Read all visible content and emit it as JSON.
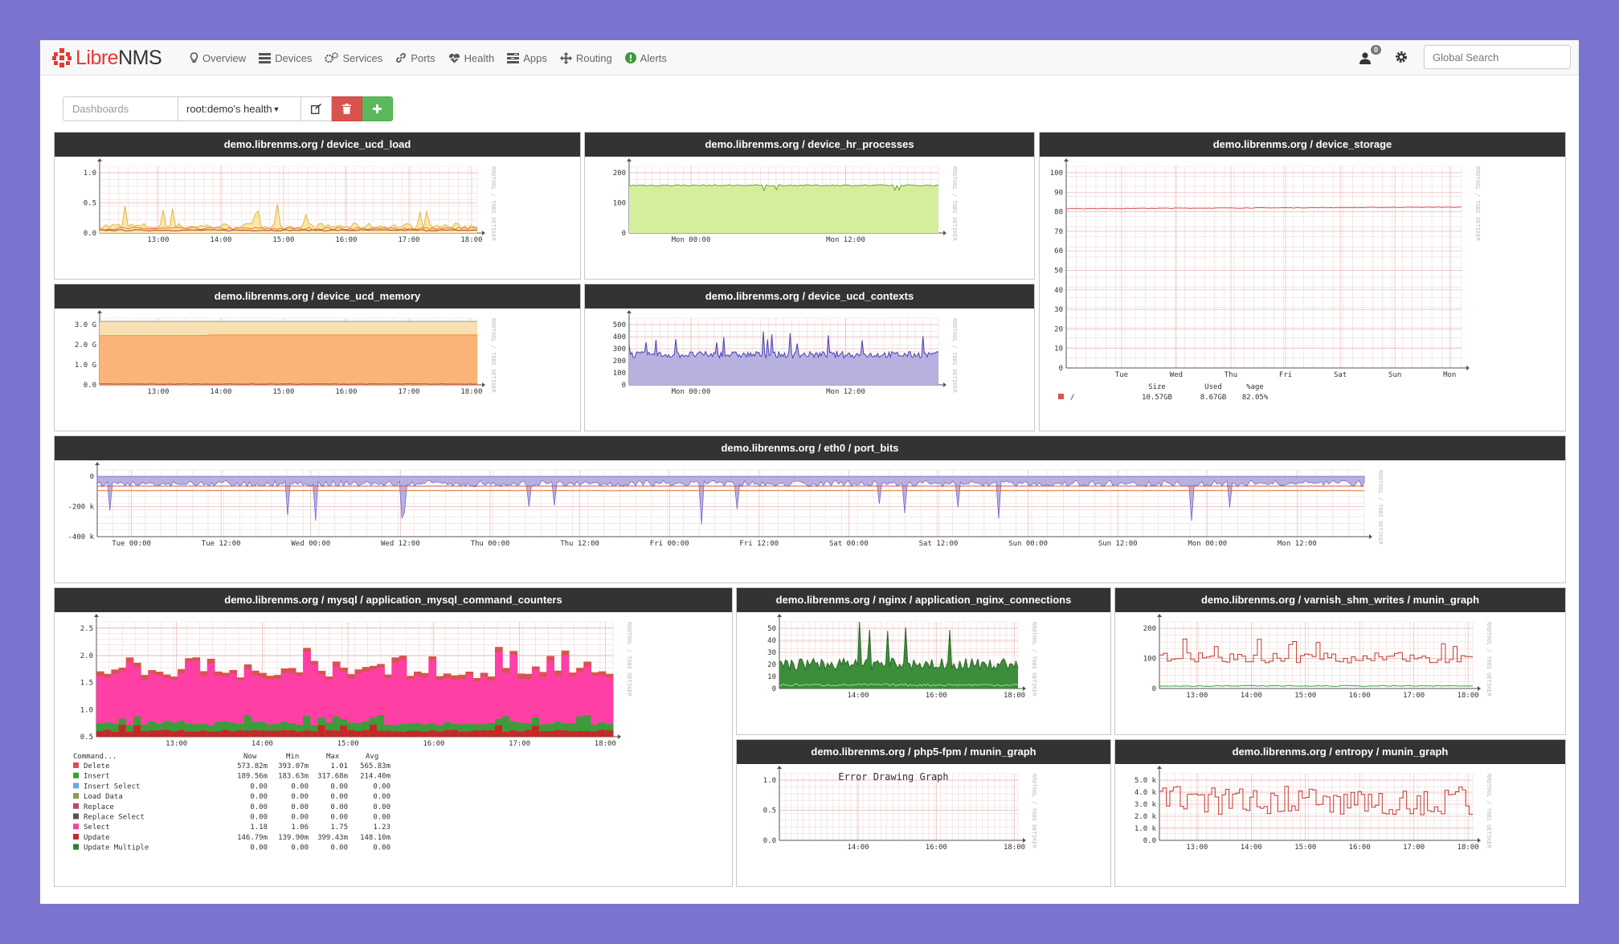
{
  "brand": {
    "prefix": "Libre",
    "suffix": "NMS"
  },
  "nav": [
    {
      "label": "Overview",
      "icon": "lightbulb-icon"
    },
    {
      "label": "Devices",
      "icon": "server-icon"
    },
    {
      "label": "Services",
      "icon": "cogs-icon"
    },
    {
      "label": "Ports",
      "icon": "link-icon"
    },
    {
      "label": "Health",
      "icon": "heartbeat-icon"
    },
    {
      "label": "Apps",
      "icon": "tasks-icon"
    },
    {
      "label": "Routing",
      "icon": "arrows-icon"
    },
    {
      "label": "Alerts",
      "icon": "exclamation-circle-icon"
    }
  ],
  "user": {
    "badge": "0"
  },
  "search": {
    "placeholder": "Global Search"
  },
  "toolbar": {
    "dashboards_placeholder": "Dashboards",
    "selected_dashboard": "root:demo's health"
  },
  "widgets": {
    "load": {
      "title": "demo.librenms.org / device_ucd_load",
      "yticks": [
        "1.0",
        "0.5",
        "0.0"
      ],
      "xticks": [
        "13:00",
        "14:00",
        "15:00",
        "16:00",
        "17:00",
        "18:00"
      ]
    },
    "processes": {
      "title": "demo.librenms.org / device_hr_processes",
      "yticks": [
        "200",
        "100",
        "0"
      ],
      "xticks": [
        "Mon 00:00",
        "Mon 12:00"
      ]
    },
    "storage": {
      "title": "demo.librenms.org / device_storage",
      "yticks": [
        "100",
        "90",
        "80",
        "70",
        "60",
        "50",
        "40",
        "30",
        "20",
        "10",
        "0"
      ],
      "xticks": [
        "Tue",
        "Wed",
        "Thu",
        "Fri",
        "Sat",
        "Sun",
        "Mon"
      ],
      "legend_head": [
        "Size",
        "Used",
        "%age"
      ],
      "legend_row": {
        "name": "/",
        "size": "10.57GB",
        "used": "8.67GB",
        "pct": "82.05%"
      },
      "line_color": "#d9534f"
    },
    "memory": {
      "title": "demo.librenms.org / device_ucd_memory",
      "yticks": [
        "3.0 G",
        "2.0 G",
        "1.0 G",
        "0.0"
      ],
      "xticks": [
        "13:00",
        "14:00",
        "15:00",
        "16:00",
        "17:00",
        "18:00"
      ]
    },
    "contexts": {
      "title": "demo.librenms.org / device_ucd_contexts",
      "yticks": [
        "500",
        "400",
        "300",
        "200",
        "100",
        "0"
      ],
      "xticks": [
        "Mon 00:00",
        "Mon 12:00"
      ]
    },
    "port_bits": {
      "title": "demo.librenms.org / eth0 / port_bits",
      "yticks": [
        "0",
        "-200 k",
        "-400 k"
      ],
      "xticks": [
        "Tue 00:00",
        "Tue 12:00",
        "Wed 00:00",
        "Wed 12:00",
        "Thu 00:00",
        "Thu 12:00",
        "Fri 00:00",
        "Fri 12:00",
        "Sat 00:00",
        "Sat 12:00",
        "Sun 00:00",
        "Sun 12:00",
        "Mon 00:00",
        "Mon 12:00"
      ]
    },
    "mysql": {
      "title": "demo.librenms.org / mysql / application_mysql_command_counters",
      "yticks": [
        "2.5",
        "2.0",
        "1.5",
        "1.0",
        "0.5"
      ],
      "xticks": [
        "13:00",
        "14:00",
        "15:00",
        "16:00",
        "17:00",
        "18:00"
      ],
      "legend_head": [
        "Command...",
        "Now",
        "Min",
        "Max",
        "Avg"
      ],
      "legend": [
        {
          "name": "Delete",
          "color": "#d9534f",
          "now": "573.82m",
          "min": "393.07m",
          "max": "1.01",
          "avg": "565.83m"
        },
        {
          "name": "Insert",
          "color": "#3a9d3a",
          "now": "189.56m",
          "min": "183.63m",
          "max": "317.68m",
          "avg": "214.40m"
        },
        {
          "name": "Insert Select",
          "color": "#6fa8dc",
          "now": "0.00",
          "min": "0.00",
          "max": "0.00",
          "avg": "0.00"
        },
        {
          "name": "Load Data",
          "color": "#8b9b4a",
          "now": "0.00",
          "min": "0.00",
          "max": "0.00",
          "avg": "0.00"
        },
        {
          "name": "Replace",
          "color": "#b84a6a",
          "now": "0.00",
          "min": "0.00",
          "max": "0.00",
          "avg": "0.00"
        },
        {
          "name": "Replace Select",
          "color": "#555555",
          "now": "0.00",
          "min": "0.00",
          "max": "0.00",
          "avg": "0.00"
        },
        {
          "name": "Select",
          "color": "#ff3fa6",
          "now": "1.18",
          "min": "1.06",
          "max": "1.75",
          "avg": "1.23"
        },
        {
          "name": "Update",
          "color": "#c62828",
          "now": "146.79m",
          "min": "139.90m",
          "max": "399.43m",
          "avg": "148.10m"
        },
        {
          "name": "Update Multiple",
          "color": "#2e7d32",
          "now": "0.00",
          "min": "0.00",
          "max": "0.00",
          "avg": "0.00"
        }
      ]
    },
    "nginx": {
      "title": "demo.librenms.org / nginx / application_nginx_connections",
      "yticks": [
        "50",
        "40",
        "30",
        "20",
        "10",
        "0"
      ],
      "xticks": [
        "14:00",
        "16:00",
        "18:00"
      ]
    },
    "varnish": {
      "title": "demo.librenms.org / varnish_shm_writes / munin_graph",
      "yticks": [
        "200",
        "100",
        "0"
      ],
      "xticks": [
        "13:00",
        "14:00",
        "15:00",
        "16:00",
        "17:00",
        "18:00"
      ]
    },
    "php": {
      "title": "demo.librenms.org / php5-fpm / munin_graph",
      "error": "Error Drawing Graph",
      "yticks": [
        "1.0",
        "0.5",
        "0.0"
      ],
      "xticks": [
        "14:00",
        "16:00",
        "18:00"
      ]
    },
    "entropy": {
      "title": "demo.librenms.org / entropy / munin_graph",
      "yticks": [
        "5.0 k",
        "4.0 k",
        "3.0 k",
        "2.0 k",
        "1.0 k",
        "0.0"
      ],
      "xticks": [
        "13:00",
        "14:00",
        "15:00",
        "16:00",
        "17:00",
        "18:00"
      ]
    }
  },
  "watermark": "RRDTOOL / TOBI OETIKER"
}
